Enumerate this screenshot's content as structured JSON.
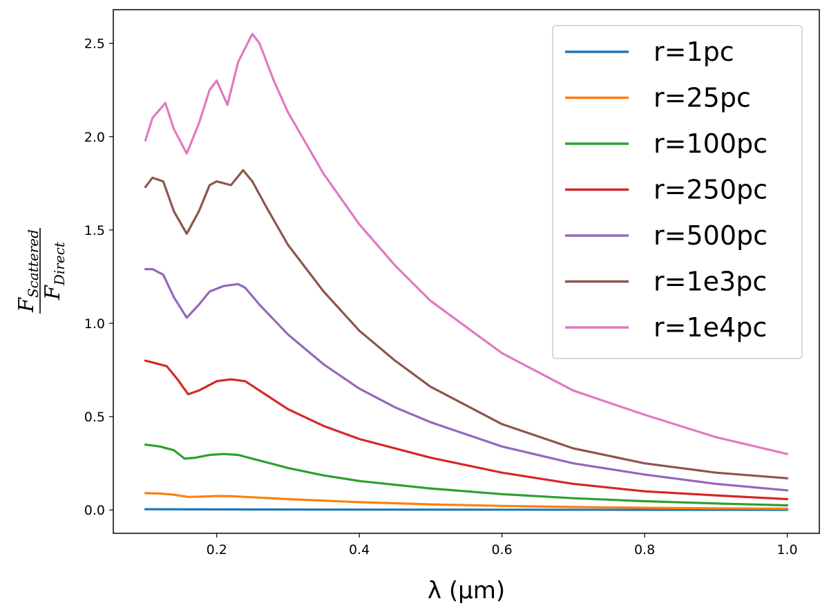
{
  "chart_data": {
    "type": "line",
    "xlabel": "λ (μm)",
    "ylabel_num": "F",
    "ylabel_num_sub": "Scattered",
    "ylabel_den": "F",
    "ylabel_den_sub": "Direct",
    "xlim": [
      0.055,
      1.045
    ],
    "ylim": [
      -0.125,
      2.68
    ],
    "xticks": [
      0.2,
      0.4,
      0.6,
      0.8,
      1.0
    ],
    "xtick_labels": [
      "0.2",
      "0.4",
      "0.6",
      "0.8",
      "1.0"
    ],
    "yticks": [
      0.0,
      0.5,
      1.0,
      1.5,
      2.0,
      2.5
    ],
    "ytick_labels": [
      "0.0",
      "0.5",
      "1.0",
      "1.5",
      "2.0",
      "2.5"
    ],
    "grid": false,
    "legend_position": "top-right",
    "series": [
      {
        "name": "r=1pc",
        "color": "#1f77b4",
        "x": [
          0.1,
          0.2,
          0.4,
          0.6,
          0.8,
          1.0
        ],
        "y": [
          0.004,
          0.003,
          0.002,
          0.0015,
          0.001,
          0.001
        ]
      },
      {
        "name": "r=25pc",
        "color": "#ff7f0e",
        "x": [
          0.1,
          0.12,
          0.14,
          0.16,
          0.18,
          0.2,
          0.22,
          0.25,
          0.3,
          0.4,
          0.5,
          0.6,
          0.7,
          0.8,
          0.9,
          1.0
        ],
        "y": [
          0.09,
          0.088,
          0.082,
          0.07,
          0.072,
          0.075,
          0.074,
          0.068,
          0.058,
          0.042,
          0.03,
          0.022,
          0.016,
          0.012,
          0.009,
          0.007
        ]
      },
      {
        "name": "r=100pc",
        "color": "#2ca02c",
        "x": [
          0.1,
          0.12,
          0.14,
          0.155,
          0.17,
          0.19,
          0.21,
          0.23,
          0.25,
          0.3,
          0.35,
          0.4,
          0.5,
          0.6,
          0.7,
          0.8,
          0.9,
          1.0
        ],
        "y": [
          0.35,
          0.34,
          0.32,
          0.275,
          0.28,
          0.295,
          0.3,
          0.295,
          0.275,
          0.225,
          0.185,
          0.155,
          0.115,
          0.085,
          0.063,
          0.047,
          0.035,
          0.025
        ]
      },
      {
        "name": "r=250pc",
        "color": "#d62728",
        "x": [
          0.1,
          0.11,
          0.13,
          0.145,
          0.16,
          0.175,
          0.2,
          0.22,
          0.24,
          0.26,
          0.3,
          0.35,
          0.4,
          0.5,
          0.6,
          0.7,
          0.8,
          0.9,
          1.0
        ],
        "y": [
          0.8,
          0.79,
          0.77,
          0.7,
          0.62,
          0.64,
          0.69,
          0.7,
          0.69,
          0.64,
          0.54,
          0.45,
          0.38,
          0.28,
          0.2,
          0.14,
          0.1,
          0.078,
          0.058
        ]
      },
      {
        "name": "r=500pc",
        "color": "#9467bd",
        "x": [
          0.1,
          0.11,
          0.125,
          0.14,
          0.158,
          0.175,
          0.19,
          0.21,
          0.23,
          0.24,
          0.26,
          0.3,
          0.35,
          0.4,
          0.45,
          0.5,
          0.6,
          0.7,
          0.8,
          0.9,
          1.0
        ],
        "y": [
          1.29,
          1.29,
          1.26,
          1.14,
          1.03,
          1.1,
          1.17,
          1.2,
          1.21,
          1.19,
          1.1,
          0.94,
          0.78,
          0.65,
          0.55,
          0.47,
          0.34,
          0.25,
          0.19,
          0.14,
          0.105
        ]
      },
      {
        "name": "r=1e3pc",
        "color": "#8c564b",
        "x": [
          0.1,
          0.11,
          0.125,
          0.14,
          0.158,
          0.175,
          0.19,
          0.2,
          0.22,
          0.237,
          0.25,
          0.27,
          0.3,
          0.35,
          0.4,
          0.45,
          0.5,
          0.6,
          0.7,
          0.8,
          0.9,
          1.0
        ],
        "y": [
          1.73,
          1.78,
          1.76,
          1.6,
          1.48,
          1.6,
          1.74,
          1.76,
          1.74,
          1.82,
          1.76,
          1.62,
          1.42,
          1.17,
          0.96,
          0.8,
          0.66,
          0.46,
          0.33,
          0.25,
          0.2,
          0.17
        ]
      },
      {
        "name": "r=1e4pc",
        "color": "#e377c2",
        "x": [
          0.1,
          0.11,
          0.128,
          0.14,
          0.158,
          0.175,
          0.19,
          0.2,
          0.215,
          0.23,
          0.25,
          0.26,
          0.28,
          0.3,
          0.35,
          0.4,
          0.45,
          0.5,
          0.6,
          0.7,
          0.8,
          0.9,
          1.0
        ],
        "y": [
          1.98,
          2.1,
          2.18,
          2.04,
          1.91,
          2.07,
          2.25,
          2.3,
          2.17,
          2.4,
          2.55,
          2.5,
          2.3,
          2.13,
          1.8,
          1.53,
          1.31,
          1.12,
          0.84,
          0.64,
          0.51,
          0.39,
          0.3
        ]
      }
    ]
  }
}
